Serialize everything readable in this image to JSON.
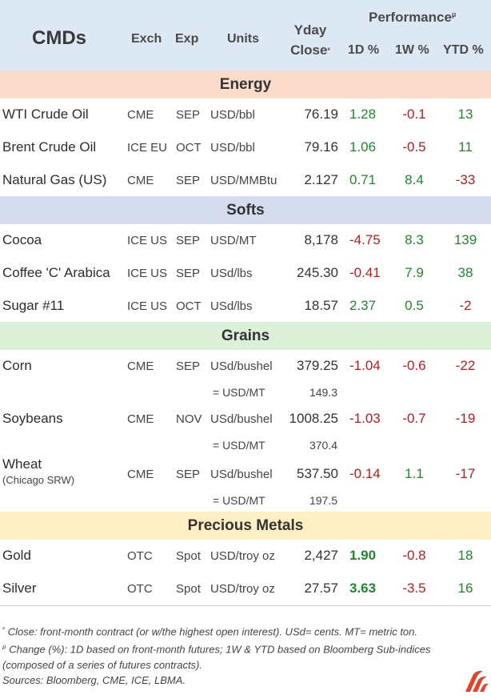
{
  "header": {
    "title": "CMDs",
    "exch": "Exch",
    "exp": "Exp",
    "units": "Units",
    "yday_line1": "Yday",
    "yday_line2": "Close",
    "yday_mark": "ᵉ",
    "performance": "Performance",
    "performance_mark": "µ",
    "col_1d": "1D %",
    "col_1w": "1W %",
    "col_ytd": "YTD %"
  },
  "sections": [
    {
      "label": "Energy",
      "color": "#fbdccb"
    },
    {
      "label": "Softs",
      "color": "#d5dcee"
    },
    {
      "label": "Grains",
      "color": "#dcefd7"
    },
    {
      "label": "Precious Metals",
      "color": "#fdefc3"
    }
  ],
  "rows": {
    "wti": {
      "name": "WTI Crude Oil",
      "exch": "CME",
      "exp": "SEP",
      "units": "USD/bbl",
      "close": "76.19",
      "d1": "1.28",
      "w1": "-0.1",
      "ytd": "13"
    },
    "brent": {
      "name": "Brent Crude Oil",
      "exch": "ICE EU",
      "exp": "OCT",
      "units": "USD/bbl",
      "close": "79.16",
      "d1": "1.06",
      "w1": "-0.5",
      "ytd": "11"
    },
    "natgas": {
      "name": "Natural Gas (US)",
      "exch": "CME",
      "exp": "SEP",
      "units": "USD/MMBtu",
      "close": "2.127",
      "d1": "0.71",
      "w1": "8.4",
      "ytd": "-33"
    },
    "cocoa": {
      "name": "Cocoa",
      "exch": "ICE US",
      "exp": "SEP",
      "units": "USD/MT",
      "close": "8,178",
      "d1": "-4.75",
      "w1": "8.3",
      "ytd": "139"
    },
    "coffee": {
      "name": "Coffee 'C' Arabica",
      "exch": "ICE US",
      "exp": "SEP",
      "units": "USd/lbs",
      "close": "245.30",
      "d1": "-0.41",
      "w1": "7.9",
      "ytd": "38"
    },
    "sugar": {
      "name": "Sugar #11",
      "exch": "ICE US",
      "exp": "OCT",
      "units": "USd/lbs",
      "close": "18.57",
      "d1": "2.37",
      "w1": "0.5",
      "ytd": "-2"
    },
    "corn": {
      "name": "Corn",
      "exch": "CME",
      "exp": "SEP",
      "units": "USd/bushel",
      "close": "379.25",
      "d1": "-1.04",
      "w1": "-0.6",
      "ytd": "-22",
      "conv_units": "= USD/MT",
      "conv_val": "149.3"
    },
    "soybeans": {
      "name": "Soybeans",
      "exch": "CME",
      "exp": "NOV",
      "units": "USd/bushel",
      "close": "1008.25",
      "d1": "-1.03",
      "w1": "-0.7",
      "ytd": "-19",
      "conv_units": "= USD/MT",
      "conv_val": "370.4"
    },
    "wheat": {
      "name": "Wheat",
      "name_sub": "(Chicago SRW)",
      "exch": "CME",
      "exp": "SEP",
      "units": "USd/bushel",
      "close": "537.50",
      "d1": "-0.14",
      "w1": "1.1",
      "ytd": "-17",
      "conv_units": "= USD/MT",
      "conv_val": "197.5"
    },
    "gold": {
      "name": "Gold",
      "exch": "OTC",
      "exp": "Spot",
      "units": "USD/troy oz",
      "close": "2,427",
      "d1": "1.90",
      "w1": "-0.8",
      "ytd": "18"
    },
    "silver": {
      "name": "Silver",
      "exch": "OTC",
      "exp": "Spot",
      "units": "USD/troy oz",
      "close": "27.57",
      "d1": "3.63",
      "w1": "-3.5",
      "ytd": "16"
    }
  },
  "footnotes": {
    "line1_mark": "ᵉ",
    "line1": " Close: front-month contract (or w/the highest open interest). USd= cents. MT= metric ton.",
    "line2_mark": "µ",
    "line2": " Change (%): 1D based on front-month futures; 1W & YTD based on Bloomberg Sub-indices",
    "line3": "(composed of a series of futures contracts).",
    "line4": "Sources: Bloomberg, CME, ICE, LBMA."
  },
  "colors": {
    "positive": "#1f8a2a",
    "negative": "#c21a1a",
    "header_bg": "#dde8f5",
    "logo": "#e8412b"
  },
  "logo_icon": "flame-logo-icon"
}
